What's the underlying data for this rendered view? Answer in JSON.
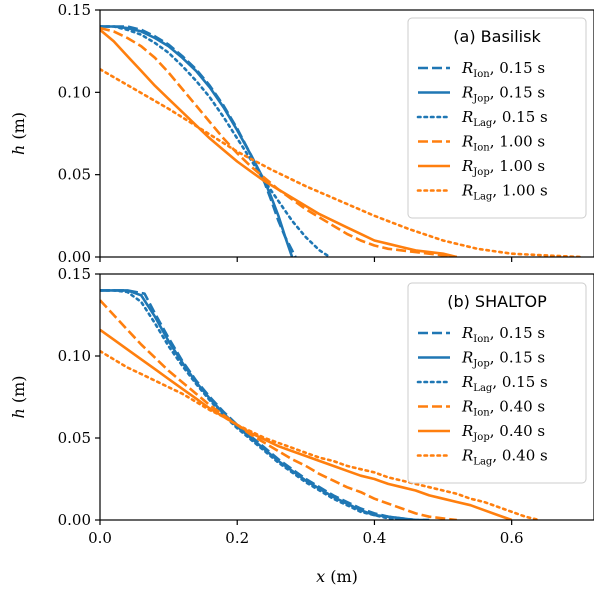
{
  "chart_data": [
    {
      "type": "line",
      "title": "(a) Basilisk",
      "xlabel": "",
      "ylabel_var": "h",
      "ylabel_unit": "(m)",
      "xlim": [
        0,
        0.72
      ],
      "ylim": [
        0,
        0.15
      ],
      "xticks": [
        0.0,
        0.2,
        0.4,
        0.6
      ],
      "xtick_labels": [
        "",
        "",
        "",
        ""
      ],
      "yticks": [
        0.0,
        0.05,
        0.1,
        0.15
      ],
      "ytick_labels": [
        "0.00",
        "0.05",
        "0.10",
        "0.15"
      ],
      "grid": false,
      "legend_placement": "top-right",
      "colors": {
        "blue": "#1f77b4",
        "orange": "#ff7f0e"
      },
      "series": [
        {
          "model": "R",
          "sub": "Ion",
          "time": ", 0.15 s",
          "color": "#1f77b4",
          "style": "dashed",
          "x": [
            0.0,
            0.02,
            0.04,
            0.06,
            0.08,
            0.1,
            0.12,
            0.14,
            0.16,
            0.18,
            0.2,
            0.22,
            0.24,
            0.25,
            0.26,
            0.27,
            0.28,
            0.285
          ],
          "y": [
            0.14,
            0.14,
            0.14,
            0.138,
            0.134,
            0.129,
            0.122,
            0.114,
            0.104,
            0.092,
            0.078,
            0.062,
            0.045,
            0.034,
            0.022,
            0.012,
            0.004,
            0.0
          ]
        },
        {
          "model": "R",
          "sub": "Jop",
          "time": ", 0.15 s",
          "color": "#1f77b4",
          "style": "solid",
          "x": [
            0.0,
            0.02,
            0.04,
            0.06,
            0.08,
            0.1,
            0.12,
            0.14,
            0.16,
            0.18,
            0.2,
            0.22,
            0.24,
            0.25,
            0.26,
            0.27,
            0.28
          ],
          "y": [
            0.14,
            0.14,
            0.139,
            0.137,
            0.133,
            0.128,
            0.121,
            0.113,
            0.103,
            0.091,
            0.077,
            0.062,
            0.046,
            0.036,
            0.025,
            0.012,
            0.0
          ]
        },
        {
          "model": "R",
          "sub": "Lag",
          "time": ", 0.15 s",
          "color": "#1f77b4",
          "style": "dotted",
          "x": [
            0.0,
            0.02,
            0.04,
            0.06,
            0.08,
            0.1,
            0.12,
            0.14,
            0.16,
            0.18,
            0.2,
            0.22,
            0.24,
            0.26,
            0.28,
            0.3,
            0.32,
            0.335
          ],
          "y": [
            0.14,
            0.14,
            0.138,
            0.135,
            0.13,
            0.124,
            0.116,
            0.107,
            0.097,
            0.085,
            0.072,
            0.059,
            0.046,
            0.034,
            0.022,
            0.012,
            0.004,
            0.0
          ]
        },
        {
          "model": "R",
          "sub": "Ion",
          "time": ", 1.00 s",
          "color": "#ff7f0e",
          "style": "dashed",
          "x": [
            0.0,
            0.02,
            0.04,
            0.06,
            0.08,
            0.1,
            0.12,
            0.14,
            0.16,
            0.18,
            0.2,
            0.22,
            0.24,
            0.26,
            0.28,
            0.3,
            0.32,
            0.34,
            0.36,
            0.38,
            0.4,
            0.42,
            0.44,
            0.46,
            0.48,
            0.5,
            0.52
          ],
          "y": [
            0.139,
            0.137,
            0.133,
            0.128,
            0.121,
            0.112,
            0.102,
            0.092,
            0.082,
            0.072,
            0.063,
            0.055,
            0.048,
            0.041,
            0.035,
            0.029,
            0.024,
            0.019,
            0.014,
            0.01,
            0.007,
            0.005,
            0.004,
            0.003,
            0.002,
            0.001,
            0.0
          ]
        },
        {
          "model": "R",
          "sub": "Jop",
          "time": ", 1.00 s",
          "color": "#ff7f0e",
          "style": "solid",
          "x": [
            0.0,
            0.02,
            0.04,
            0.06,
            0.08,
            0.1,
            0.12,
            0.14,
            0.16,
            0.18,
            0.2,
            0.22,
            0.24,
            0.26,
            0.28,
            0.3,
            0.32,
            0.34,
            0.36,
            0.38,
            0.4,
            0.42,
            0.44,
            0.46,
            0.48,
            0.5,
            0.52
          ],
          "y": [
            0.138,
            0.131,
            0.122,
            0.113,
            0.104,
            0.096,
            0.088,
            0.08,
            0.072,
            0.065,
            0.058,
            0.052,
            0.046,
            0.041,
            0.036,
            0.031,
            0.026,
            0.022,
            0.018,
            0.014,
            0.01,
            0.008,
            0.006,
            0.004,
            0.003,
            0.002,
            0.0
          ]
        },
        {
          "model": "R",
          "sub": "Lag",
          "time": ", 1.00 s",
          "color": "#ff7f0e",
          "style": "dotted",
          "x": [
            0.0,
            0.05,
            0.1,
            0.15,
            0.2,
            0.25,
            0.3,
            0.35,
            0.4,
            0.45,
            0.5,
            0.55,
            0.6,
            0.65,
            0.7
          ],
          "y": [
            0.114,
            0.102,
            0.09,
            0.077,
            0.064,
            0.053,
            0.043,
            0.034,
            0.025,
            0.017,
            0.01,
            0.005,
            0.002,
            0.001,
            0.0
          ]
        }
      ]
    },
    {
      "type": "line",
      "title": "(b) SHALTOP",
      "xlabel_var": "x",
      "xlabel_unit": "(m)",
      "ylabel_var": "h",
      "ylabel_unit": "(m)",
      "xlim": [
        0,
        0.72
      ],
      "ylim": [
        0,
        0.15
      ],
      "xticks": [
        0.0,
        0.2,
        0.4,
        0.6
      ],
      "xtick_labels": [
        "0.0",
        "0.2",
        "0.4",
        "0.6"
      ],
      "yticks": [
        0.0,
        0.05,
        0.1,
        0.15
      ],
      "ytick_labels": [
        "0.00",
        "0.05",
        "0.10",
        "0.15"
      ],
      "grid": false,
      "legend_placement": "top-right",
      "colors": {
        "blue": "#1f77b4",
        "orange": "#ff7f0e"
      },
      "series": [
        {
          "model": "R",
          "sub": "Ion",
          "time": ", 0.15 s",
          "color": "#1f77b4",
          "style": "dashed",
          "x": [
            0.0,
            0.02,
            0.04,
            0.065,
            0.08,
            0.1,
            0.12,
            0.14,
            0.16,
            0.18,
            0.2,
            0.22,
            0.24,
            0.26,
            0.28,
            0.3,
            0.32,
            0.34,
            0.36,
            0.38,
            0.4,
            0.42,
            0.44,
            0.46,
            0.48
          ],
          "y": [
            0.14,
            0.14,
            0.14,
            0.138,
            0.126,
            0.111,
            0.097,
            0.085,
            0.075,
            0.066,
            0.058,
            0.051,
            0.044,
            0.037,
            0.031,
            0.025,
            0.02,
            0.015,
            0.011,
            0.007,
            0.004,
            0.002,
            0.001,
            0.0,
            0.0
          ]
        },
        {
          "model": "R",
          "sub": "Jop",
          "time": ", 0.15 s",
          "color": "#1f77b4",
          "style": "solid",
          "x": [
            0.0,
            0.02,
            0.04,
            0.06,
            0.08,
            0.1,
            0.12,
            0.14,
            0.16,
            0.18,
            0.2,
            0.22,
            0.24,
            0.26,
            0.28,
            0.3,
            0.32,
            0.34,
            0.36,
            0.38,
            0.4,
            0.42,
            0.44,
            0.46,
            0.48
          ],
          "y": [
            0.14,
            0.14,
            0.14,
            0.137,
            0.124,
            0.109,
            0.096,
            0.084,
            0.074,
            0.065,
            0.057,
            0.05,
            0.043,
            0.036,
            0.03,
            0.024,
            0.019,
            0.014,
            0.01,
            0.006,
            0.003,
            0.002,
            0.001,
            0.0,
            0.0
          ]
        },
        {
          "model": "R",
          "sub": "Lag",
          "time": ", 0.15 s",
          "color": "#1f77b4",
          "style": "dotted",
          "x": [
            0.0,
            0.02,
            0.04,
            0.06,
            0.08,
            0.1,
            0.12,
            0.14,
            0.16,
            0.18,
            0.2,
            0.22,
            0.24,
            0.26,
            0.28,
            0.3,
            0.32,
            0.34,
            0.36,
            0.38,
            0.4,
            0.42,
            0.44,
            0.46
          ],
          "y": [
            0.14,
            0.14,
            0.139,
            0.133,
            0.12,
            0.106,
            0.094,
            0.083,
            0.073,
            0.064,
            0.056,
            0.049,
            0.042,
            0.035,
            0.029,
            0.023,
            0.018,
            0.013,
            0.009,
            0.005,
            0.003,
            0.001,
            0.0,
            0.0
          ]
        },
        {
          "model": "R",
          "sub": "Ion",
          "time": ", 0.40 s",
          "color": "#ff7f0e",
          "style": "dashed",
          "x": [
            0.0,
            0.02,
            0.04,
            0.06,
            0.08,
            0.1,
            0.12,
            0.14,
            0.16,
            0.18,
            0.2,
            0.22,
            0.24,
            0.26,
            0.28,
            0.3,
            0.32,
            0.34,
            0.36,
            0.38,
            0.4,
            0.42,
            0.44,
            0.46,
            0.48,
            0.5,
            0.52
          ],
          "y": [
            0.134,
            0.125,
            0.116,
            0.107,
            0.099,
            0.091,
            0.084,
            0.077,
            0.07,
            0.064,
            0.058,
            0.052,
            0.047,
            0.042,
            0.037,
            0.033,
            0.028,
            0.024,
            0.02,
            0.017,
            0.013,
            0.01,
            0.007,
            0.004,
            0.002,
            0.001,
            0.0
          ]
        },
        {
          "model": "R",
          "sub": "Jop",
          "time": ", 0.40 s",
          "color": "#ff7f0e",
          "style": "solid",
          "x": [
            0.0,
            0.02,
            0.04,
            0.06,
            0.08,
            0.1,
            0.12,
            0.14,
            0.16,
            0.18,
            0.2,
            0.22,
            0.24,
            0.26,
            0.28,
            0.3,
            0.32,
            0.34,
            0.36,
            0.38,
            0.4,
            0.42,
            0.44,
            0.46,
            0.48,
            0.5,
            0.52,
            0.54,
            0.56,
            0.58,
            0.6
          ],
          "y": [
            0.116,
            0.11,
            0.104,
            0.098,
            0.092,
            0.086,
            0.08,
            0.074,
            0.068,
            0.063,
            0.058,
            0.053,
            0.049,
            0.045,
            0.042,
            0.039,
            0.036,
            0.033,
            0.03,
            0.027,
            0.025,
            0.022,
            0.02,
            0.018,
            0.015,
            0.013,
            0.011,
            0.009,
            0.006,
            0.003,
            0.0
          ]
        },
        {
          "model": "R",
          "sub": "Lag",
          "time": ", 0.40 s",
          "color": "#ff7f0e",
          "style": "dotted",
          "x": [
            0.0,
            0.02,
            0.04,
            0.06,
            0.08,
            0.1,
            0.12,
            0.14,
            0.16,
            0.18,
            0.2,
            0.22,
            0.24,
            0.26,
            0.28,
            0.3,
            0.32,
            0.34,
            0.36,
            0.38,
            0.4,
            0.42,
            0.44,
            0.46,
            0.48,
            0.5,
            0.52,
            0.54,
            0.56,
            0.58,
            0.6,
            0.62,
            0.64
          ],
          "y": [
            0.103,
            0.098,
            0.093,
            0.089,
            0.085,
            0.081,
            0.077,
            0.072,
            0.067,
            0.063,
            0.058,
            0.054,
            0.05,
            0.047,
            0.044,
            0.041,
            0.038,
            0.036,
            0.033,
            0.031,
            0.029,
            0.026,
            0.024,
            0.022,
            0.02,
            0.018,
            0.016,
            0.013,
            0.011,
            0.008,
            0.005,
            0.002,
            0.0
          ]
        }
      ]
    }
  ]
}
